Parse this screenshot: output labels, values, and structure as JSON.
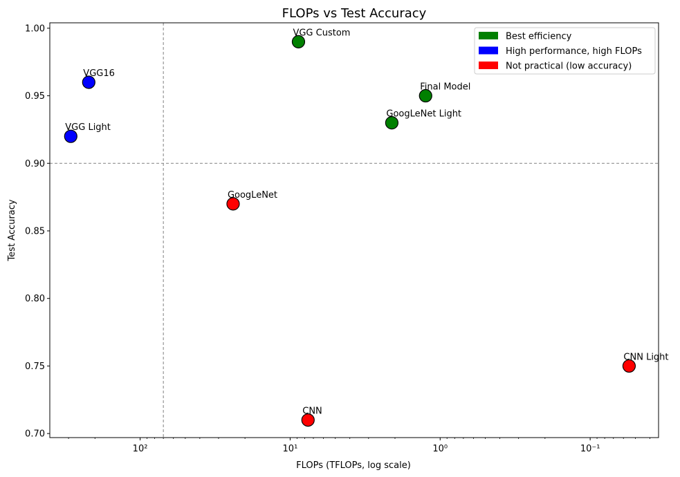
{
  "chart_data": {
    "type": "scatter",
    "title": "FLOPs vs Test Accuracy",
    "xlabel": "FLOPs (TFLOPs, log scale)",
    "ylabel": "Test Accuracy",
    "xscale": "log",
    "xaxis_inverted": true,
    "xlim": [
      400,
      0.035
    ],
    "ylim": [
      0.697,
      1.004
    ],
    "x_ticks": [
      {
        "value": 100,
        "label": "10²"
      },
      {
        "value": 10,
        "label": "10¹"
      },
      {
        "value": 1,
        "label": "10⁰"
      },
      {
        "value": 0.1,
        "label": "10⁻¹"
      }
    ],
    "y_ticks": [
      {
        "value": 0.7,
        "label": "0.70"
      },
      {
        "value": 0.75,
        "label": "0.75"
      },
      {
        "value": 0.8,
        "label": "0.80"
      },
      {
        "value": 0.85,
        "label": "0.85"
      },
      {
        "value": 0.9,
        "label": "0.90"
      },
      {
        "value": 0.95,
        "label": "0.95"
      },
      {
        "value": 1.0,
        "label": "1.00"
      }
    ],
    "reference_lines": {
      "vertical_x": 70,
      "horizontal_y": 0.9
    },
    "points": [
      {
        "name": "VGG Custom",
        "flops": 8.8,
        "accuracy": 0.99,
        "category": "best"
      },
      {
        "name": "VGG16",
        "flops": 220,
        "accuracy": 0.96,
        "category": "high"
      },
      {
        "name": "VGG Light",
        "flops": 290,
        "accuracy": 0.92,
        "category": "high"
      },
      {
        "name": "Final Model",
        "flops": 1.25,
        "accuracy": 0.95,
        "category": "best"
      },
      {
        "name": "GoogLeNet Light",
        "flops": 2.1,
        "accuracy": 0.93,
        "category": "best"
      },
      {
        "name": "GoogLeNet",
        "flops": 24,
        "accuracy": 0.87,
        "category": "bad"
      },
      {
        "name": "CNN",
        "flops": 7.6,
        "accuracy": 0.71,
        "category": "bad"
      },
      {
        "name": "CNN Light",
        "flops": 0.055,
        "accuracy": 0.75,
        "category": "bad"
      }
    ],
    "categories": {
      "best": {
        "label": "Best efficiency",
        "color": "#008000"
      },
      "high": {
        "label": "High performance, high FLOPs",
        "color": "#0000ff"
      },
      "bad": {
        "label": "Not practical (low accuracy)",
        "color": "#ff0000"
      }
    },
    "legend": {
      "placement": "top-right",
      "entries": [
        "best",
        "high",
        "bad"
      ]
    }
  }
}
